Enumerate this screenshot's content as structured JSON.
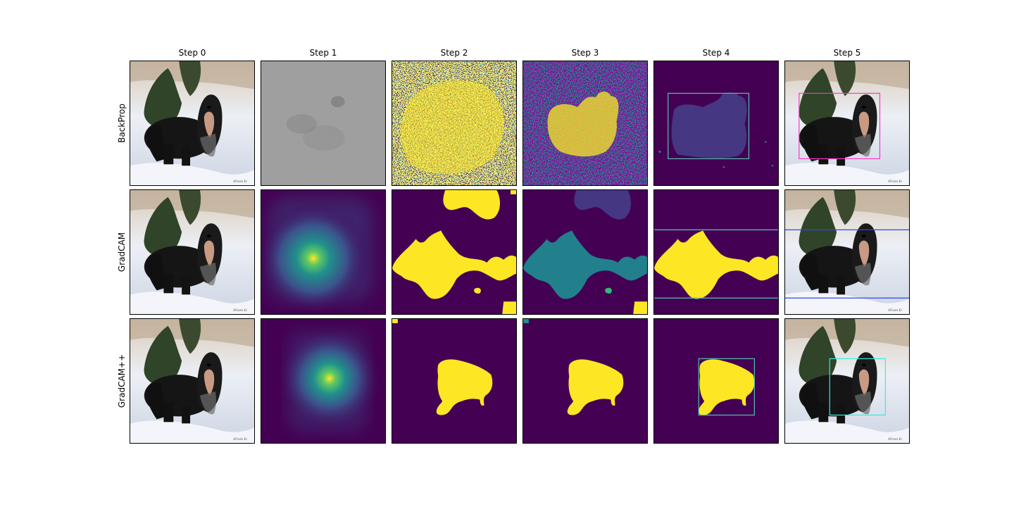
{
  "columns": [
    "Step 0",
    "Step 1",
    "Step 2",
    "Step 3",
    "Step 4",
    "Step 5"
  ],
  "rows": [
    "BackProp",
    "GradCAM",
    "GradCAM++"
  ],
  "watermark": "AFrom.Er",
  "colors": {
    "viridis_dark": "#440154",
    "viridis_mid": "#21908c",
    "viridis_teal": "#35b779",
    "viridis_yellow": "#fde725",
    "viridis_purple": "#453781",
    "snow": "#e4e8f0",
    "dog": "#151515",
    "box_backprop": "#ff33cc",
    "box_gradcam": "#3344ee",
    "box_gradcampp": "#33eedd",
    "box_mask": "#56c0b0"
  },
  "panels": [
    {
      "row": 0,
      "col": 0,
      "kind": "photo"
    },
    {
      "row": 0,
      "col": 1,
      "kind": "gradient-noise"
    },
    {
      "row": 0,
      "col": 2,
      "kind": "threshold-noise-dense"
    },
    {
      "row": 0,
      "col": 3,
      "kind": "threshold-noise-blobs"
    },
    {
      "row": 0,
      "col": 4,
      "kind": "mask-box"
    },
    {
      "row": 0,
      "col": 5,
      "kind": "photo-box"
    },
    {
      "row": 1,
      "col": 0,
      "kind": "photo"
    },
    {
      "row": 1,
      "col": 1,
      "kind": "heatmap"
    },
    {
      "row": 1,
      "col": 2,
      "kind": "mask"
    },
    {
      "row": 1,
      "col": 3,
      "kind": "mask-labels"
    },
    {
      "row": 1,
      "col": 4,
      "kind": "mask-box"
    },
    {
      "row": 1,
      "col": 5,
      "kind": "photo-box"
    },
    {
      "row": 2,
      "col": 0,
      "kind": "photo"
    },
    {
      "row": 2,
      "col": 1,
      "kind": "heatmap"
    },
    {
      "row": 2,
      "col": 2,
      "kind": "mask"
    },
    {
      "row": 2,
      "col": 3,
      "kind": "mask"
    },
    {
      "row": 2,
      "col": 4,
      "kind": "mask-box"
    },
    {
      "row": 2,
      "col": 5,
      "kind": "photo-box"
    }
  ]
}
